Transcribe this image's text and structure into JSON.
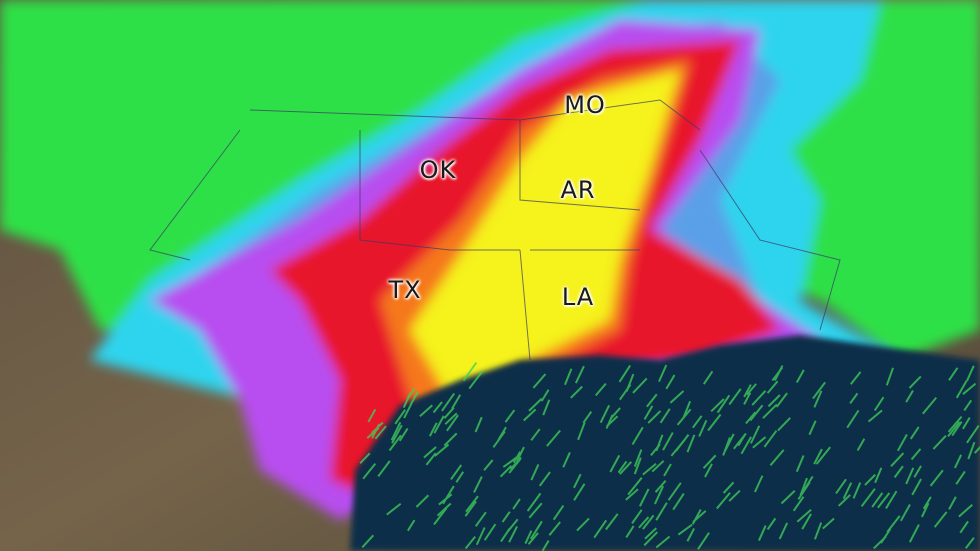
{
  "map": {
    "labels": [
      {
        "id": "mo",
        "text": "MO"
      },
      {
        "id": "ok",
        "text": "OK"
      },
      {
        "id": "ar",
        "text": "AR"
      },
      {
        "id": "tx",
        "text": "TX"
      },
      {
        "id": "la",
        "text": "LA"
      }
    ],
    "colors": {
      "land": "#6b5a44",
      "ocean": "#0f2d4a",
      "green": "#2ee046",
      "cyan": "#2fd4ee",
      "blue": "#5aa0e8",
      "purple": "#b84ef0",
      "magenta": "#d23ad8",
      "red": "#e8192c",
      "orange": "#f5781e",
      "yellow": "#f5f21e"
    }
  }
}
